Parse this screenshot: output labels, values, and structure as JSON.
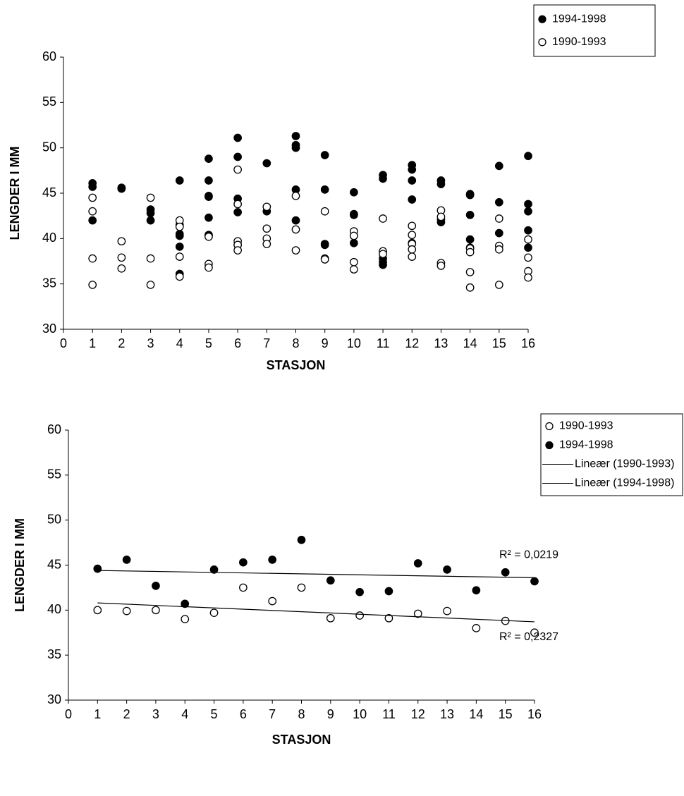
{
  "chart_data": [
    {
      "type": "scatter",
      "xlabel": "STASJON",
      "ylabel": "LENGDER I MM",
      "xlim": [
        0,
        16
      ],
      "ylim": [
        30,
        60
      ],
      "xticks": [
        0,
        1,
        2,
        3,
        4,
        5,
        6,
        7,
        8,
        9,
        10,
        11,
        12,
        13,
        14,
        15,
        16
      ],
      "yticks": [
        30,
        35,
        40,
        45,
        50,
        55,
        60
      ],
      "legend": "top-right",
      "series": [
        {
          "name": "1994-1998",
          "color": "#000000",
          "marker": "filled",
          "x": [
            1,
            1,
            1,
            2,
            2,
            3,
            3,
            3,
            4,
            4,
            4,
            4,
            4,
            4,
            5,
            5,
            5,
            5,
            5,
            5,
            5,
            6,
            6,
            6,
            6,
            6,
            7,
            7,
            8,
            8,
            8,
            8,
            8,
            9,
            9,
            9,
            9,
            10,
            10,
            10,
            10,
            10,
            11,
            11,
            11,
            11,
            11,
            12,
            12,
            12,
            12,
            12,
            13,
            13,
            13,
            13,
            14,
            14,
            14,
            14,
            14,
            15,
            15,
            15,
            16,
            16,
            16,
            16,
            16
          ],
          "values": [
            46.1,
            45.7,
            42.0,
            45.6,
            45.5,
            43.2,
            42.8,
            42.0,
            46.4,
            41.5,
            40.5,
            40.3,
            39.1,
            36.1,
            48.8,
            46.4,
            44.7,
            44.6,
            42.3,
            40.4,
            40.3,
            51.1,
            49.0,
            44.4,
            42.9,
            39.3,
            48.3,
            43.0,
            51.3,
            50.3,
            50.0,
            45.4,
            42.0,
            49.2,
            45.4,
            39.4,
            39.3,
            45.1,
            42.7,
            42.6,
            40.3,
            39.5,
            47.0,
            46.6,
            37.8,
            37.4,
            37.1,
            48.1,
            47.6,
            46.4,
            44.3,
            39.5,
            46.4,
            46.0,
            42.1,
            41.8,
            44.9,
            44.8,
            42.6,
            39.9,
            39.0,
            48.0,
            44.0,
            40.6,
            49.1,
            43.8,
            43.0,
            40.9,
            39.0
          ]
        },
        {
          "name": "1990-1993",
          "color": "#000000",
          "marker": "open",
          "x": [
            1,
            1,
            1,
            1,
            2,
            2,
            2,
            3,
            3,
            3,
            4,
            4,
            4,
            4,
            5,
            5,
            5,
            6,
            6,
            6,
            6,
            6,
            7,
            7,
            7,
            7,
            8,
            8,
            8,
            9,
            9,
            9,
            10,
            10,
            10,
            10,
            11,
            11,
            11,
            12,
            12,
            12,
            12,
            12,
            13,
            13,
            13,
            13,
            14,
            14,
            14,
            14,
            15,
            15,
            15,
            15,
            16,
            16,
            16,
            16
          ],
          "values": [
            44.5,
            43.0,
            37.8,
            34.9,
            39.7,
            37.9,
            36.7,
            44.5,
            37.8,
            34.9,
            42.0,
            41.3,
            38.0,
            35.8,
            40.2,
            37.2,
            36.8,
            47.6,
            43.8,
            39.7,
            39.3,
            38.7,
            43.5,
            41.1,
            40.0,
            39.4,
            44.7,
            41.0,
            38.7,
            43.0,
            37.8,
            37.7,
            40.8,
            40.3,
            37.4,
            36.6,
            42.2,
            38.6,
            38.3,
            41.4,
            40.4,
            39.4,
            38.8,
            38.0,
            43.1,
            42.4,
            37.3,
            37.0,
            38.9,
            38.5,
            36.3,
            34.6,
            42.2,
            39.2,
            38.8,
            34.9,
            39.9,
            37.9,
            36.4,
            35.7
          ]
        }
      ]
    },
    {
      "type": "scatter",
      "xlabel": "STASJON",
      "ylabel": "LENGDER I MM",
      "xlim": [
        0,
        16
      ],
      "ylim": [
        30,
        60
      ],
      "xticks": [
        0,
        1,
        2,
        3,
        4,
        5,
        6,
        7,
        8,
        9,
        10,
        11,
        12,
        13,
        14,
        15,
        16
      ],
      "yticks": [
        30,
        35,
        40,
        45,
        50,
        55,
        60
      ],
      "legend": "top-right",
      "series": [
        {
          "name": "1990-1993",
          "color": "#000000",
          "marker": "open",
          "x": [
            1,
            2,
            3,
            4,
            5,
            6,
            7,
            8,
            9,
            10,
            11,
            12,
            13,
            14,
            15,
            16
          ],
          "values": [
            40.0,
            39.9,
            40.0,
            39.0,
            39.7,
            42.5,
            41.0,
            42.5,
            39.1,
            39.4,
            39.1,
            39.6,
            39.9,
            38.0,
            38.8,
            37.5
          ]
        },
        {
          "name": "1994-1998",
          "color": "#000000",
          "marker": "filled",
          "x": [
            1,
            2,
            3,
            4,
            5,
            6,
            7,
            8,
            9,
            10,
            11,
            12,
            13,
            14,
            15,
            16
          ],
          "values": [
            44.6,
            45.6,
            42.7,
            40.7,
            44.5,
            45.3,
            45.6,
            47.8,
            43.3,
            42.0,
            42.1,
            45.2,
            44.5,
            42.2,
            44.2,
            43.2
          ]
        },
        {
          "name": "Lineær (1990-1993)",
          "color": "#000000",
          "marker": "line",
          "x": [
            1,
            16
          ],
          "values": [
            40.8,
            38.7
          ],
          "annotation": "R² = 0,2327"
        },
        {
          "name": "Lineær (1994-1998)",
          "color": "#000000",
          "marker": "line",
          "x": [
            1,
            16
          ],
          "values": [
            44.4,
            43.6
          ],
          "annotation": "R² = 0,0219"
        }
      ]
    }
  ]
}
